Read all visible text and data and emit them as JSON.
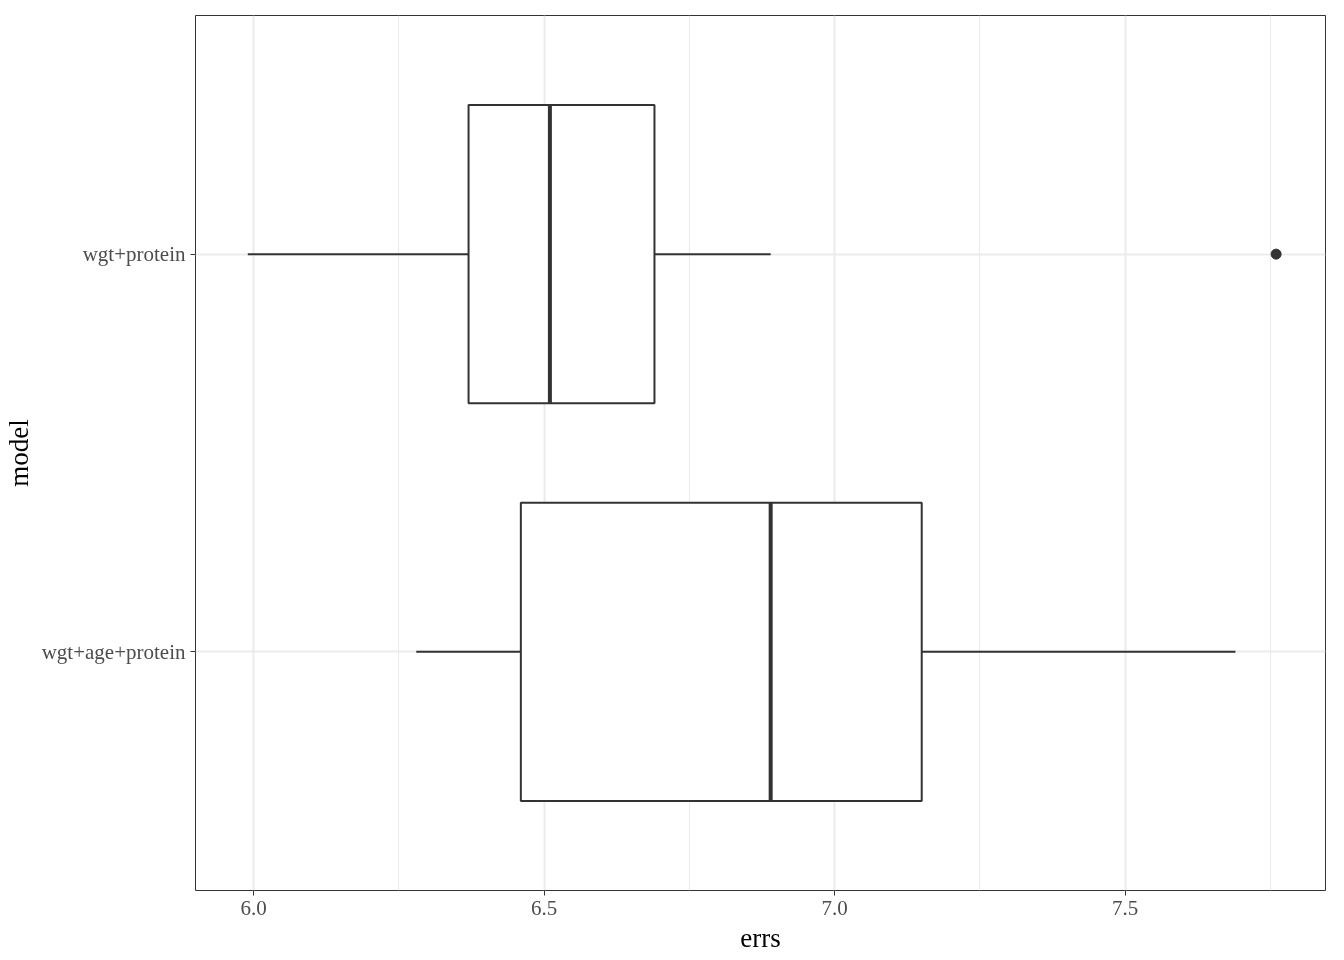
{
  "chart_data": {
    "type": "box",
    "orientation": "horizontal",
    "xlabel": "errs",
    "ylabel": "model",
    "categories": [
      "wgt+protein",
      "wgt+age+protein"
    ],
    "boxes": [
      {
        "low": 5.99,
        "q1": 6.37,
        "median": 6.51,
        "q3": 6.69,
        "high": 6.89,
        "outliers": [
          7.76
        ]
      },
      {
        "low": 6.28,
        "q1": 6.46,
        "median": 6.89,
        "q3": 7.15,
        "high": 7.69
      }
    ],
    "color": "#333333",
    "xlim": [
      5.9,
      7.845
    ],
    "xticks": [
      {
        "value": 6,
        "label": "6.0"
      },
      {
        "value": 6.25,
        "label": null
      },
      6.5,
      {
        "value": 6.75,
        "label": null
      },
      {
        "value": 7,
        "label": "7.0"
      },
      {
        "value": 7.25,
        "label": null
      },
      7.5,
      {
        "value": 7.75,
        "label": null
      }
    ],
    "grid": true
  }
}
